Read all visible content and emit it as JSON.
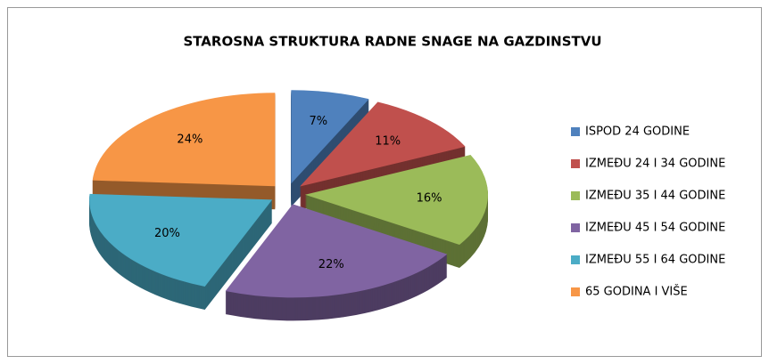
{
  "chart_data": {
    "type": "pie",
    "title": "STAROSNA STRUKTURA RADNE SNAGE NA GAZDINSTVU",
    "categories": [
      "ISPOD 24 GODINE",
      "IZMEĐU 24 I 34 GODINE",
      "IZMEĐU 35 I 44 GODINE",
      "IZMEĐU 45 I 54 GODINE",
      "IZMEĐU 55 I 64 GODINE",
      "65 GODINA I VIŠE"
    ],
    "values": [
      7,
      11,
      16,
      22,
      20,
      24
    ],
    "value_labels": [
      "7%",
      "11%",
      "16%",
      "22%",
      "20%",
      "24%"
    ],
    "colors": [
      "#4f81bd",
      "#c0504d",
      "#9bbb59",
      "#8064a2",
      "#4bacc6",
      "#f79646"
    ],
    "legend": "right"
  }
}
